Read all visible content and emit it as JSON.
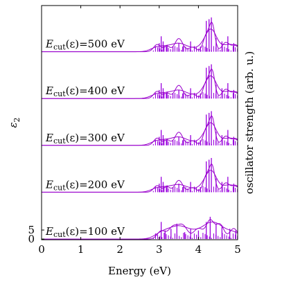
{
  "chart_data": {
    "type": "line",
    "xlabel": "Energy (eV)",
    "ylabel": "ε",
    "ylabel_sub": "2",
    "ylabel_right": "oscillator strength (arb. u.)",
    "xlim": [
      0,
      5
    ],
    "x_ticks": [
      "0",
      "1",
      "2",
      "3",
      "4",
      "5"
    ],
    "y_ticks": [
      "0",
      "5"
    ],
    "grid": false,
    "colors": {
      "curve": "#9900cc",
      "sticks": "#9900dd",
      "axes": "#000000"
    },
    "panels": [
      {
        "label_main": "E",
        "label_sub": "cut",
        "label_rest": "(ε)=500 eV",
        "peaks": [
          [
            2.95,
            0.55,
            0.09
          ],
          [
            3.2,
            0.4,
            0.08
          ],
          [
            3.5,
            1.0,
            0.1
          ],
          [
            3.85,
            0.35,
            0.09
          ],
          [
            4.2,
            1.2,
            0.08
          ],
          [
            4.35,
            2.0,
            0.07
          ],
          [
            4.7,
            0.7,
            0.1
          ],
          [
            4.95,
            0.5,
            0.09
          ]
        ],
        "sticks": [
          [
            3.0,
            0.5
          ],
          [
            3.05,
            0.9
          ],
          [
            3.1,
            0.6
          ],
          [
            3.2,
            0.4
          ],
          [
            3.35,
            0.3
          ],
          [
            3.5,
            0.5
          ],
          [
            3.6,
            0.3
          ],
          [
            3.8,
            0.6
          ],
          [
            4.05,
            0.3
          ],
          [
            4.2,
            1.8
          ],
          [
            4.27,
            1.9
          ],
          [
            4.33,
            2.0
          ],
          [
            4.45,
            0.8
          ],
          [
            4.6,
            0.6
          ],
          [
            4.75,
            0.9
          ],
          [
            4.9,
            0.5
          ]
        ]
      },
      {
        "label_main": "E",
        "label_sub": "cut",
        "label_rest": "(ε)=400 eV",
        "peaks": [
          [
            2.95,
            0.55,
            0.09
          ],
          [
            3.2,
            0.4,
            0.08
          ],
          [
            3.5,
            1.0,
            0.1
          ],
          [
            3.85,
            0.35,
            0.09
          ],
          [
            4.2,
            1.2,
            0.08
          ],
          [
            4.35,
            2.0,
            0.07
          ],
          [
            4.7,
            0.7,
            0.1
          ],
          [
            4.95,
            0.5,
            0.09
          ]
        ],
        "sticks": [
          [
            3.0,
            0.5
          ],
          [
            3.05,
            0.9
          ],
          [
            3.1,
            0.6
          ],
          [
            3.2,
            0.4
          ],
          [
            3.35,
            0.3
          ],
          [
            3.5,
            0.5
          ],
          [
            3.6,
            0.3
          ],
          [
            3.8,
            0.6
          ],
          [
            4.05,
            0.3
          ],
          [
            4.2,
            1.8
          ],
          [
            4.27,
            1.9
          ],
          [
            4.33,
            2.0
          ],
          [
            4.45,
            0.8
          ],
          [
            4.6,
            0.6
          ],
          [
            4.75,
            0.9
          ],
          [
            4.9,
            0.5
          ]
        ]
      },
      {
        "label_main": "E",
        "label_sub": "cut",
        "label_rest": "(ε)=300 eV",
        "peaks": [
          [
            2.95,
            0.55,
            0.09
          ],
          [
            3.2,
            0.4,
            0.08
          ],
          [
            3.5,
            1.0,
            0.1
          ],
          [
            3.85,
            0.35,
            0.09
          ],
          [
            4.2,
            1.2,
            0.08
          ],
          [
            4.35,
            2.0,
            0.07
          ],
          [
            4.7,
            0.7,
            0.1
          ],
          [
            4.95,
            0.5,
            0.09
          ]
        ],
        "sticks": [
          [
            3.0,
            0.5
          ],
          [
            3.05,
            0.9
          ],
          [
            3.1,
            0.6
          ],
          [
            3.2,
            0.4
          ],
          [
            3.35,
            0.3
          ],
          [
            3.5,
            0.5
          ],
          [
            3.6,
            0.3
          ],
          [
            3.8,
            0.6
          ],
          [
            4.05,
            0.3
          ],
          [
            4.2,
            1.8
          ],
          [
            4.27,
            1.9
          ],
          [
            4.33,
            2.0
          ],
          [
            4.45,
            0.8
          ],
          [
            4.6,
            0.6
          ],
          [
            4.75,
            0.9
          ],
          [
            4.9,
            0.5
          ]
        ]
      },
      {
        "label_main": "E",
        "label_sub": "cut",
        "label_rest": "(ε)=200 eV",
        "peaks": [
          [
            2.95,
            0.5,
            0.09
          ],
          [
            3.2,
            0.4,
            0.08
          ],
          [
            3.5,
            0.9,
            0.1
          ],
          [
            3.85,
            0.35,
            0.09
          ],
          [
            4.2,
            1.2,
            0.08
          ],
          [
            4.35,
            1.9,
            0.07
          ],
          [
            4.7,
            0.7,
            0.1
          ],
          [
            4.95,
            0.5,
            0.09
          ]
        ],
        "sticks": [
          [
            3.0,
            0.5
          ],
          [
            3.05,
            0.9
          ],
          [
            3.1,
            0.6
          ],
          [
            3.2,
            0.4
          ],
          [
            3.35,
            0.3
          ],
          [
            3.5,
            0.5
          ],
          [
            3.6,
            0.3
          ],
          [
            3.8,
            0.6
          ],
          [
            4.05,
            0.3
          ],
          [
            4.2,
            1.8
          ],
          [
            4.27,
            1.9
          ],
          [
            4.33,
            2.0
          ],
          [
            4.45,
            0.8
          ],
          [
            4.6,
            0.6
          ],
          [
            4.75,
            0.9
          ],
          [
            4.9,
            0.5
          ]
        ]
      },
      {
        "label_main": "E",
        "label_sub": "cut",
        "label_rest": "(ε)=100 eV",
        "peaks": [
          [
            3.05,
            0.6,
            0.1
          ],
          [
            3.35,
            0.9,
            0.12
          ],
          [
            3.6,
            1.0,
            0.12
          ],
          [
            4.0,
            0.8,
            0.12
          ],
          [
            4.3,
            1.4,
            0.1
          ],
          [
            4.55,
            1.1,
            0.1
          ],
          [
            4.9,
            0.8,
            0.1
          ]
        ],
        "sticks": [
          [
            3.05,
            1.0
          ],
          [
            3.15,
            0.5
          ],
          [
            3.3,
            0.6
          ],
          [
            3.45,
            0.9
          ],
          [
            3.65,
            0.4
          ],
          [
            3.8,
            0.6
          ],
          [
            4.0,
            0.5
          ],
          [
            4.2,
            1.0
          ],
          [
            4.3,
            1.3
          ],
          [
            4.45,
            0.9
          ],
          [
            4.6,
            0.8
          ],
          [
            4.8,
            0.6
          ],
          [
            4.95,
            0.5
          ]
        ]
      }
    ]
  }
}
